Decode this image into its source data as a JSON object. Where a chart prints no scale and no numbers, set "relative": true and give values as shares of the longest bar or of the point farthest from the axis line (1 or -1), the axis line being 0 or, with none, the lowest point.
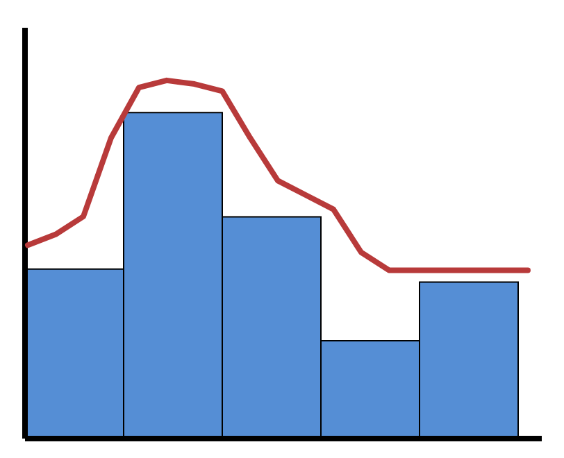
{
  "chart_data": [
    {
      "type": "bar",
      "relative": true,
      "categories": [
        null,
        null,
        null,
        null,
        null
      ],
      "values": [
        0.52,
        1,
        0.68,
        0.3,
        0.48
      ],
      "color": "#558ed5",
      "tick_labels": false
    },
    {
      "type": "line",
      "relative": true,
      "categories": [
        null,
        null,
        null,
        null,
        null,
        null,
        null,
        null,
        null,
        null,
        null,
        null,
        null,
        null,
        null,
        null,
        null,
        null,
        null
      ],
      "values": [
        0.54,
        0.57,
        0.62,
        0.84,
        0.98,
        1,
        0.99,
        0.97,
        0.84,
        0.72,
        0.68,
        0.64,
        0.52,
        0.47,
        0.47,
        0.47,
        0.47,
        0.47,
        0.47
      ],
      "color": "#b83a3a",
      "tick_labels": false,
      "marker": "none"
    }
  ]
}
